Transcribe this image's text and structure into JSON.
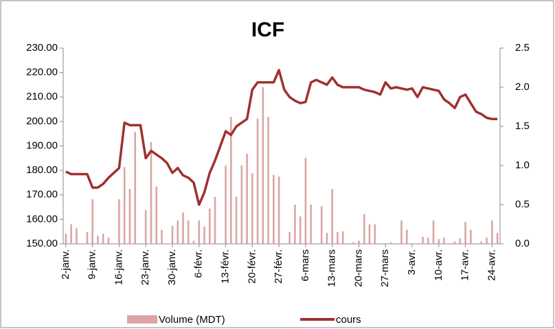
{
  "chart_data": {
    "type": "combo",
    "title": "ICF",
    "categories": [
      "2-janv.",
      null,
      null,
      null,
      null,
      "9-janv.",
      null,
      null,
      null,
      null,
      "16-janv.",
      null,
      null,
      null,
      null,
      "23-janv.",
      null,
      null,
      null,
      null,
      "30-janv.",
      null,
      null,
      null,
      null,
      "6-févr.",
      null,
      null,
      null,
      null,
      "13-févr.",
      null,
      null,
      null,
      null,
      "20-févr.",
      null,
      null,
      null,
      null,
      "27-févr.",
      null,
      null,
      null,
      null,
      "6-mars",
      null,
      null,
      null,
      null,
      "13-mars",
      null,
      null,
      null,
      null,
      "20-mars",
      null,
      null,
      null,
      null,
      "27-mars",
      null,
      null,
      null,
      null,
      "3-avr.",
      null,
      null,
      null,
      null,
      "10-avr.",
      null,
      null,
      null,
      null,
      "17-avr.",
      null,
      null,
      null,
      null,
      "24-avr.",
      null
    ],
    "series": [
      {
        "name": "Volume (MDT)",
        "kind": "bar",
        "axis": "y2",
        "color": "#dca4a4",
        "values": [
          0.13,
          0.25,
          0.2,
          0,
          0.15,
          0.57,
          0.1,
          0.13,
          0.08,
          0,
          0.57,
          0.98,
          0.7,
          1.43,
          0,
          0.43,
          1.3,
          0.73,
          0.18,
          0,
          0.23,
          0.3,
          0.4,
          0.3,
          0.04,
          0.3,
          0.22,
          0.45,
          0.6,
          0,
          1.0,
          1.62,
          0.6,
          1.0,
          1.15,
          0.9,
          1.6,
          2.0,
          1.62,
          0.88,
          0.86,
          0,
          0.15,
          0.5,
          0.35,
          1.1,
          0.5,
          0,
          0.48,
          0.14,
          0.7,
          0.15,
          0.16,
          0,
          0.02,
          0.04,
          0.38,
          0.25,
          0.25,
          0,
          0,
          0.02,
          0,
          0.3,
          0.18,
          0,
          0,
          0.09,
          0.08,
          0.3,
          0.06,
          0.08,
          0,
          0.03,
          0.07,
          0.28,
          0.18,
          0,
          0.03,
          0.08,
          0.3,
          0.14
        ]
      },
      {
        "name": "cours",
        "kind": "line",
        "color": "#a0302f",
        "values": [
          179.5,
          178.5,
          178.5,
          178.5,
          178.5,
          173,
          173,
          174.5,
          177,
          179,
          181,
          199.5,
          198.5,
          198.5,
          198.5,
          185,
          188,
          186.5,
          185,
          183,
          179,
          181,
          178,
          177,
          175,
          166,
          171,
          179,
          184,
          190,
          196,
          194.5,
          198,
          199.5,
          201,
          213,
          216,
          216,
          216,
          216,
          221,
          213,
          210,
          208.5,
          207.5,
          208,
          216,
          217,
          216,
          215,
          218,
          215,
          214,
          214,
          214,
          214,
          213,
          212.5,
          212,
          211,
          216,
          213.5,
          214,
          213.5,
          213,
          213.5,
          210,
          214,
          213.5,
          213,
          212.5,
          209,
          207.5,
          205.5,
          210,
          211,
          207.5,
          204,
          203,
          201.5,
          201,
          201
        ]
      }
    ],
    "ylim": [
      150,
      230
    ],
    "yticks": [
      {
        "value": 150,
        "label": "150.00"
      },
      {
        "value": 160,
        "label": "160.00"
      },
      {
        "value": 170,
        "label": "170.00"
      },
      {
        "value": 180,
        "label": "180.00"
      },
      {
        "value": 190,
        "label": "190.00"
      },
      {
        "value": 200,
        "label": "200.00"
      },
      {
        "value": 210,
        "label": "210.00"
      },
      {
        "value": 220,
        "label": "220.00"
      },
      {
        "value": 230,
        "label": "230.00"
      }
    ],
    "y2lim": [
      0,
      2.5
    ],
    "y2ticks": [
      {
        "value": 0,
        "label": "0.0"
      },
      0.5,
      {
        "value": 1,
        "label": "1.0"
      },
      1.5,
      {
        "value": 2,
        "label": "2.0"
      },
      2.5
    ],
    "legend": "bottom"
  }
}
